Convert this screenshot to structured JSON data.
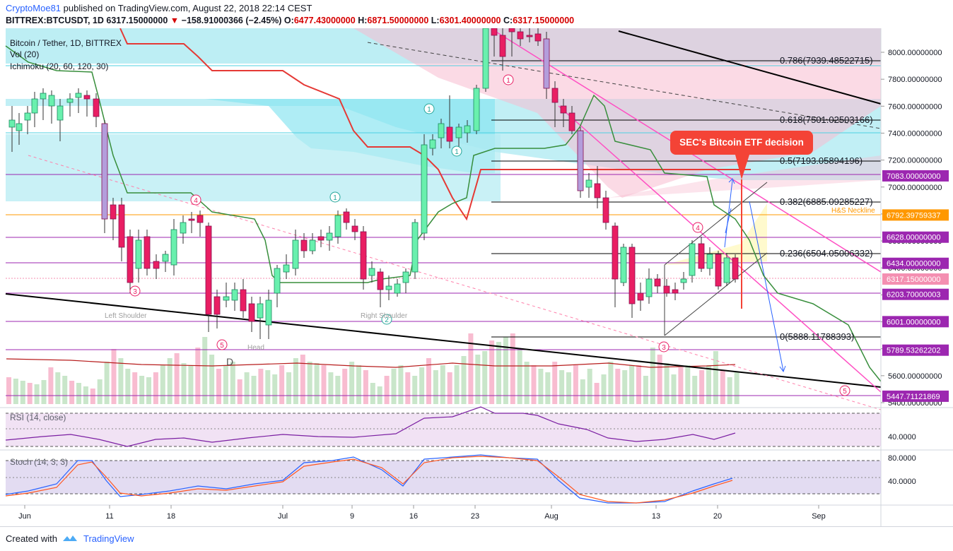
{
  "header": {
    "user": "CryptoMoe81",
    "published_text": "published on TradingView.com, August 22, 2018 22:14 CEST",
    "symbol": "BITTREX:BTCUSDT, 1D",
    "last": "6317.15000000",
    "change": "−158.91000366 (−2.45%)",
    "o_label": "O:",
    "o": "6477.43000000",
    "h_label": "H:",
    "h": "6871.50000000",
    "l_label": "L:",
    "l": "6301.40000000",
    "c_label": "C:",
    "c": "6317.15000000"
  },
  "legend": {
    "title": "Bitcoin / Tether, 1D, BITTREX",
    "vol": "Vol (20)",
    "ichimoku": "Ichimoku (20, 60, 120, 30)",
    "rsi": "RSI (14, close)",
    "stoch": "Stoch (14, 3, 3)"
  },
  "annotations": {
    "sec_label": "SEC's Bitcoin ETF decision",
    "left_shoulder": "Left Shoulder",
    "right_shoulder": "Right Shoulder",
    "head": "Head",
    "hs_neckline": "H&S Neckline",
    "fib_0786": "0.786(7939.48522715)",
    "fib_0618": "0.618(7501.02503166)",
    "fib_05": "0.5(7193.05894196)",
    "fib_0382": "0.382(6885.09285227)",
    "fib_0236": "0.236(6504.05006332)",
    "fib_0": "0(5888.11788393)",
    "wave_labels": [
      "1",
      "1",
      "1",
      "2",
      "3",
      "3",
      "4",
      "4",
      "5",
      "5",
      "D"
    ]
  },
  "colors": {
    "up": "#26a69a",
    "down": "#ef5350",
    "up_fill": "#6cd4a0",
    "down_fill": "#e91e63",
    "kumo_bull": "#00e5ff",
    "kumo_bear": "#f8bbd0",
    "purple": "#9c27b0",
    "sec_red": "#f44336",
    "fib": "#000000",
    "pink_line": "#ff4fc3"
  },
  "chart_data": {
    "type": "candlestick",
    "price_axis": [
      "8000.00000000",
      "7800.00000000",
      "7600.00000000",
      "7400.00000000",
      "7200.00000000",
      "7000.00000000",
      "6800.00000000",
      "6600.00000000",
      "6400.00000000",
      "6200.00000000",
      "6000.00000000",
      "5800.00000000",
      "5600.00000000",
      "5400.00000000"
    ],
    "price_tags": [
      {
        "label": "7083.00000000",
        "color": "#9c27b0"
      },
      {
        "label": "6792.39759337",
        "color": "#ff9800"
      },
      {
        "label": "6628.00000000",
        "color": "#9c27b0"
      },
      {
        "label": "6434.00000000",
        "color": "#9c27b0"
      },
      {
        "label": "6317.15000000",
        "color": "#f48fb1"
      },
      {
        "label": "6203.70000003",
        "color": "#9c27b0"
      },
      {
        "label": "6001.00000000",
        "color": "#9c27b0"
      },
      {
        "label": "5789.53262202",
        "color": "#9c27b0"
      },
      {
        "label": "5447.71121869",
        "color": "#9c27b0"
      }
    ],
    "x_ticks": [
      "Jun",
      "11",
      "18",
      "Jul",
      "9",
      "16",
      "23",
      "Aug",
      "13",
      "20",
      "Sep"
    ],
    "rsi_axis": [
      "40.0000"
    ],
    "stoch_axis": [
      "80.0000",
      "40.0000"
    ]
  }
}
